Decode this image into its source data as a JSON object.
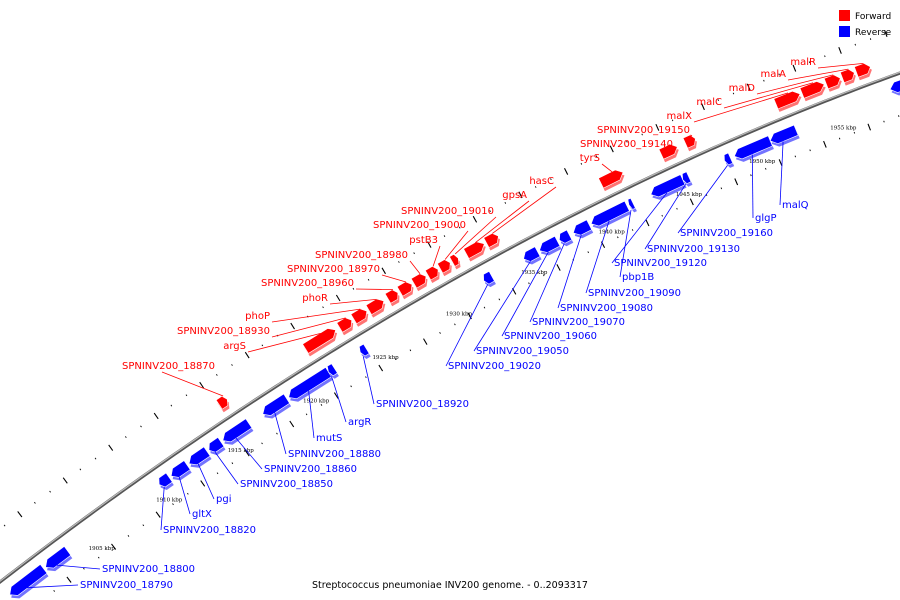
{
  "caption": "Streptococcus pneumoniae INV200 genome. - 0..2093317",
  "legend": [
    {
      "label": "Forward",
      "color": "#ff0000"
    },
    {
      "label": "Reverse",
      "color": "#0000ff"
    }
  ],
  "colors": {
    "forward": "#ff0000",
    "reverse": "#0000ff",
    "axis": "#888888"
  },
  "ticks": [
    "1905 kbp",
    "1910 kbp",
    "1915 kbp",
    "1920 kbp",
    "1925 kbp",
    "1930 kbp",
    "1935 kbp",
    "1940 kbp",
    "1945 kbp",
    "1950 kbp",
    "1955 kbp"
  ],
  "forward_genes": [
    "SPNINV200_18870",
    "argS",
    "SPNINV200_18930",
    "phoP",
    "phoR",
    "SPNINV200_18960",
    "SPNINV200_18970",
    "SPNINV200_18980",
    "pstB3",
    "SPNINV200_19000",
    "SPNINV200_19010",
    "gpsA",
    "hasC",
    "tyrS",
    "SPNINV200_19140",
    "SPNINV200_19150",
    "malX",
    "malC",
    "malD",
    "malA",
    "malR"
  ],
  "reverse_genes": [
    "SPNINV200_18790",
    "SPNINV200_18800",
    "SPNINV200_18820",
    "gltX",
    "pgi",
    "SPNINV200_18850",
    "SPNINV200_18860",
    "SPNINV200_18880",
    "mutS",
    "argR",
    "SPNINV200_18920",
    "SPNINV200_19020",
    "SPNINV200_19050",
    "SPNINV200_19060",
    "SPNINV200_19070",
    "SPNINV200_19080",
    "SPNINV200_19090",
    "pbp1B",
    "SPNINV200_19120",
    "SPNINV200_19130",
    "SPNINV200_19160",
    "glgP",
    "malQ"
  ]
}
